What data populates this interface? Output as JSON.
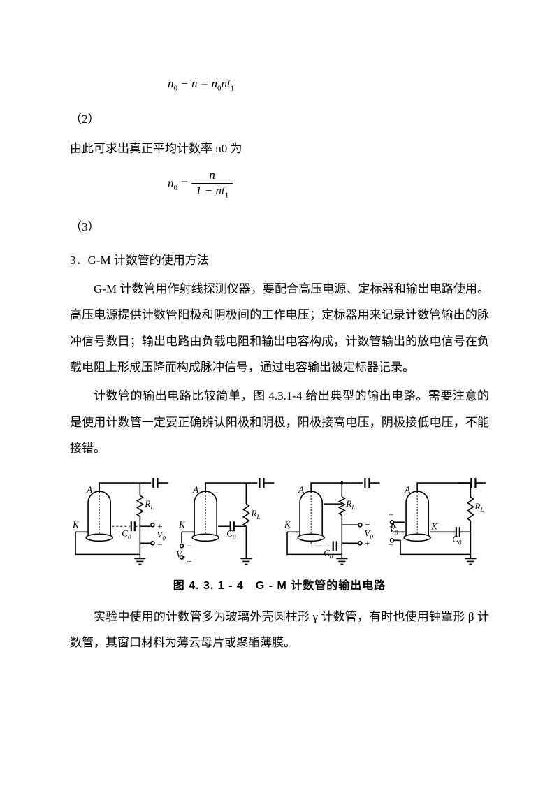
{
  "eq1": {
    "lhs_n0": "n",
    "lhs_n0_sub": "0",
    "minus": " − ",
    "lhs_n": "n",
    "eq": " = ",
    "rhs_n0": "n",
    "rhs_n0_sub": "0",
    "rhs_nt": "nt",
    "rhs_t_sub": "1"
  },
  "label2": "（2）",
  "sentence_n0": "由此可求出真正平均计数率 n0 为",
  "eq3": {
    "lhs": "n",
    "lhs_sub": "0",
    "eq": " = ",
    "num": "n",
    "den_pre": "1 − ",
    "den_n": "nt",
    "den_sub": "1"
  },
  "label3": "（3）",
  "heading3": "3．G-M 计数管的使用方法",
  "para1": "G-M 计数管用作射线探测仪器，要配合高压电源、定标器和输出电路使用。高压电源提供计数管阳极和阴极间的工作电压；定标器用来记录计数管输出的脉冲信号数目；输出电路由负载电阻和输出电容构成，计数管输出的放电信号在负载电阻上形成压降而构成脉冲信号，通过电容输出被定标器记录。",
  "para2": "计数管的输出电路比较简单，图 4.3.1-4 给出典型的输出电路。需要注意的是使用计数管一定要正确辨认阳极和阴极，阳极接高电压，阴极接低电压，不能接错。",
  "figure_caption": "图 4. 3. 1 - 4　G - M 计数管的输出电路",
  "para3": "实验中使用的计数管多为玻璃外壳圆柱形 γ 计数管，有时也使用钟罩形 β 计数管，其窗口材料为薄云母片或聚酯薄膜。",
  "circuit_labels": {
    "A": "A",
    "K": "K",
    "RL": "R",
    "RL_sub": "L",
    "C0": "C",
    "C0_sub": "0",
    "V0": "V",
    "V0_sub": "0"
  },
  "circuit_style": {
    "stroke": "#000000",
    "stroke_width": 1.6,
    "tube_fill": "#ffffff",
    "font_family": "Times New Roman",
    "font_size_label": 13,
    "font_size_sub": 9
  }
}
